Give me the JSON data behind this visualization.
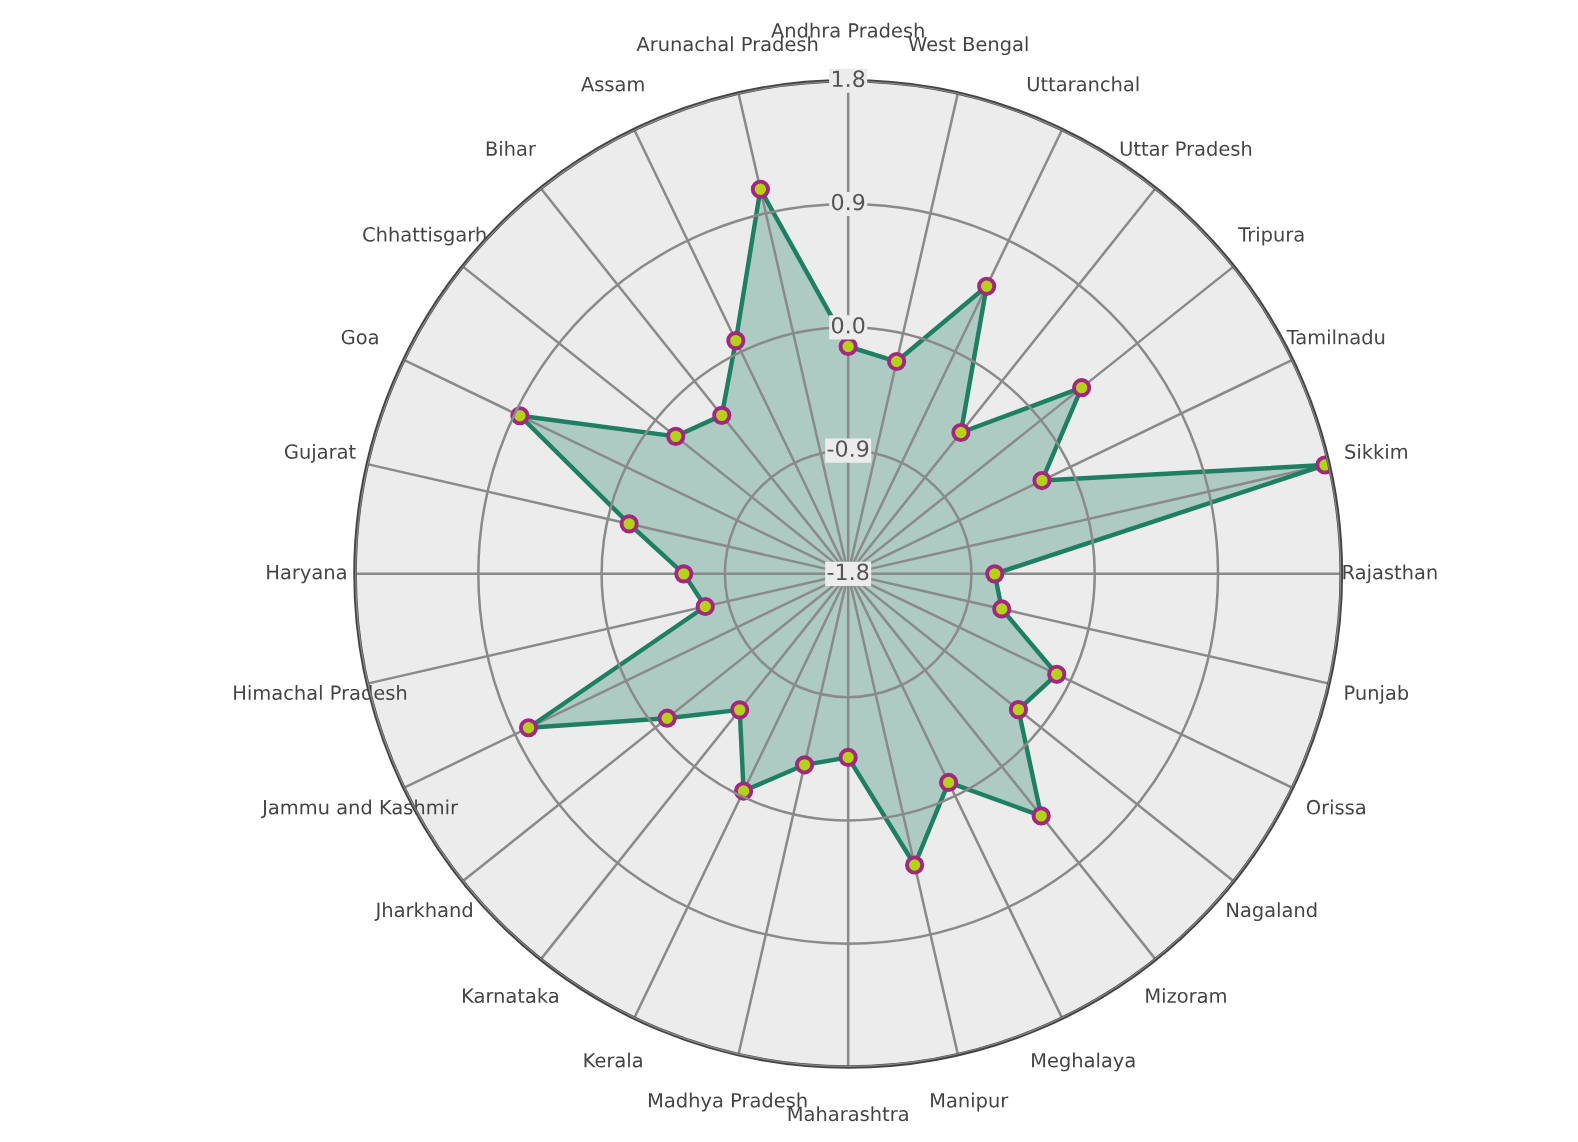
{
  "chart_data": {
    "type": "radar",
    "categories": [
      "Andhra Pradesh",
      "West Bengal",
      "Uttaranchal",
      "Uttar Pradesh",
      "Tripura",
      "Tamilnadu",
      "Sikkim",
      "Rajasthan",
      "Punjab",
      "Orissa",
      "Nagaland",
      "Mizoram",
      "Meghalaya",
      "Manipur",
      "Maharashtra",
      "Madhya Pradesh",
      "Kerala",
      "Karnataka",
      "Jharkhand",
      "Jammu and Kashmir",
      "Himachal Pradesh",
      "Haryana",
      "Gujarat",
      "Goa",
      "Chhattisgarh",
      "Bihar",
      "Assam",
      "Arunachal Pradesh"
    ],
    "series": [
      {
        "color": "#1f7f63",
        "values": [
          -0.14,
          -0.21,
          0.53,
          -0.48,
          0.38,
          -0.23,
          1.77,
          -0.73,
          -0.65,
          -0.11,
          -0.21,
          0.46,
          -0.11,
          0.38,
          -0.46,
          -0.37,
          -0.04,
          -0.53,
          -0.11,
          0.79,
          -0.73,
          -0.6,
          -0.16,
          0.86,
          -0.19,
          -0.32,
          0.09,
          1.08
        ]
      }
    ],
    "ylim": [
      -1.8,
      1.8
    ],
    "yticks": [
      -1.8,
      -0.9,
      {
        "value": 0,
        "label": "0.0"
      },
      0.9,
      1.8
    ],
    "grid": true,
    "marker": "circle",
    "line_style": "solid"
  }
}
